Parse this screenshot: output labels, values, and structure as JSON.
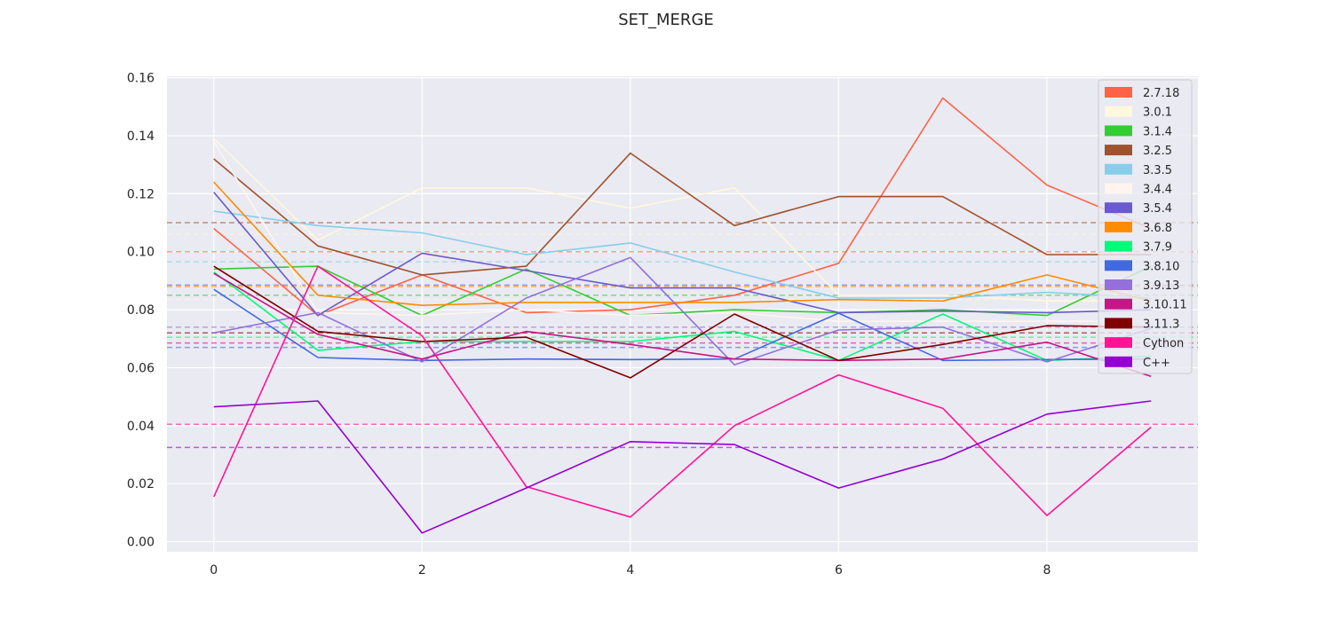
{
  "chart_data": {
    "type": "line",
    "title": "SET_MERGE",
    "xlabel": "",
    "ylabel": "",
    "x": [
      0,
      1,
      2,
      3,
      4,
      5,
      6,
      7,
      8,
      9
    ],
    "xlim": [
      -0.45,
      9.45
    ],
    "ylim": [
      -0.0035,
      0.1605
    ],
    "x_ticks": [
      0,
      2,
      4,
      6,
      8
    ],
    "x_tick_labels": [
      "0",
      "2",
      "4",
      "6",
      "8"
    ],
    "y_ticks": [
      0.0,
      0.02,
      0.04,
      0.06,
      0.08,
      0.1,
      0.12,
      0.14,
      0.16
    ],
    "y_tick_labels": [
      "0.00",
      "0.02",
      "0.04",
      "0.06",
      "0.08",
      "0.10",
      "0.12",
      "0.14",
      "0.16"
    ],
    "grid": true,
    "legend_position": "top-right",
    "background": "#eaeaf2",
    "series": [
      {
        "name": "2.7.18",
        "color": "#ff6347",
        "values": [
          0.108,
          0.078,
          0.092,
          0.079,
          0.08,
          0.085,
          0.096,
          0.153,
          0.123,
          0.108
        ],
        "mean": 0.1
      },
      {
        "name": "3.0.1",
        "color": "#fff8dc",
        "values": [
          0.139,
          0.104,
          0.122,
          0.122,
          0.115,
          0.122,
          0.085,
          0.085,
          0.083,
          0.083
        ],
        "mean": 0.106
      },
      {
        "name": "3.1.4",
        "color": "#32cd32",
        "values": [
          0.094,
          0.095,
          0.078,
          0.094,
          0.078,
          0.08,
          0.079,
          0.08,
          0.078,
          0.095
        ],
        "mean": 0.085
      },
      {
        "name": "3.2.5",
        "color": "#a0522d",
        "values": [
          0.132,
          0.102,
          0.092,
          0.095,
          0.134,
          0.109,
          0.119,
          0.119,
          0.099,
          0.099
        ],
        "mean": 0.11
      },
      {
        "name": "3.3.5",
        "color": "#87ceeb",
        "values": [
          0.114,
          0.109,
          0.1065,
          0.099,
          0.103,
          0.093,
          0.084,
          0.084,
          0.086,
          0.084
        ],
        "mean": 0.0965
      },
      {
        "name": "3.4.4",
        "color": "#fff5ee",
        "values": [
          0.138,
          0.079,
          0.078,
          0.08,
          0.078,
          0.079,
          0.076,
          0.076,
          0.076,
          0.076
        ],
        "mean": 0.0835
      },
      {
        "name": "3.5.4",
        "color": "#6a5acd",
        "values": [
          0.1205,
          0.078,
          0.0995,
          0.0935,
          0.0875,
          0.0875,
          0.079,
          0.0795,
          0.079,
          0.08
        ],
        "mean": 0.0885
      },
      {
        "name": "3.6.8",
        "color": "#ff8c00",
        "values": [
          0.124,
          0.085,
          0.0815,
          0.0825,
          0.0825,
          0.0825,
          0.0835,
          0.083,
          0.092,
          0.083
        ],
        "mean": 0.088
      },
      {
        "name": "3.7.9",
        "color": "#00fa7a",
        "values": [
          0.093,
          0.066,
          0.069,
          0.069,
          0.069,
          0.0725,
          0.0625,
          0.0785,
          0.0625,
          0.064
        ],
        "mean": 0.0705
      },
      {
        "name": "3.8.10",
        "color": "#4169e1",
        "values": [
          0.087,
          0.0635,
          0.0625,
          0.063,
          0.0628,
          0.063,
          0.0788,
          0.0625,
          0.0628,
          0.063
        ],
        "mean": 0.067
      },
      {
        "name": "3.9.13",
        "color": "#9370db",
        "values": [
          0.072,
          0.079,
          0.062,
          0.084,
          0.098,
          0.061,
          0.073,
          0.074,
          0.062,
          0.0735
        ],
        "mean": 0.074
      },
      {
        "name": "3.10.11",
        "color": "#c71585",
        "values": [
          0.0925,
          0.0715,
          0.063,
          0.0725,
          0.068,
          0.063,
          0.0625,
          0.063,
          0.0688,
          0.057
        ],
        "mean": 0.0685
      },
      {
        "name": "3.11.3",
        "color": "#800000",
        "values": [
          0.095,
          0.0725,
          0.069,
          0.0705,
          0.0565,
          0.0785,
          0.0625,
          0.068,
          0.0745,
          0.074
        ],
        "mean": 0.072
      },
      {
        "name": "Cython",
        "color": "#ff1493",
        "values": [
          0.0155,
          0.095,
          0.071,
          0.019,
          0.0085,
          0.04,
          0.0575,
          0.046,
          0.009,
          0.0395
        ],
        "mean": 0.0405
      },
      {
        "name": "C++",
        "color": "#9400d3",
        "values": [
          0.0465,
          0.0485,
          0.003,
          0.0185,
          0.0345,
          0.0335,
          0.0185,
          0.0285,
          0.044,
          0.0485
        ],
        "mean": 0.0325
      }
    ]
  }
}
